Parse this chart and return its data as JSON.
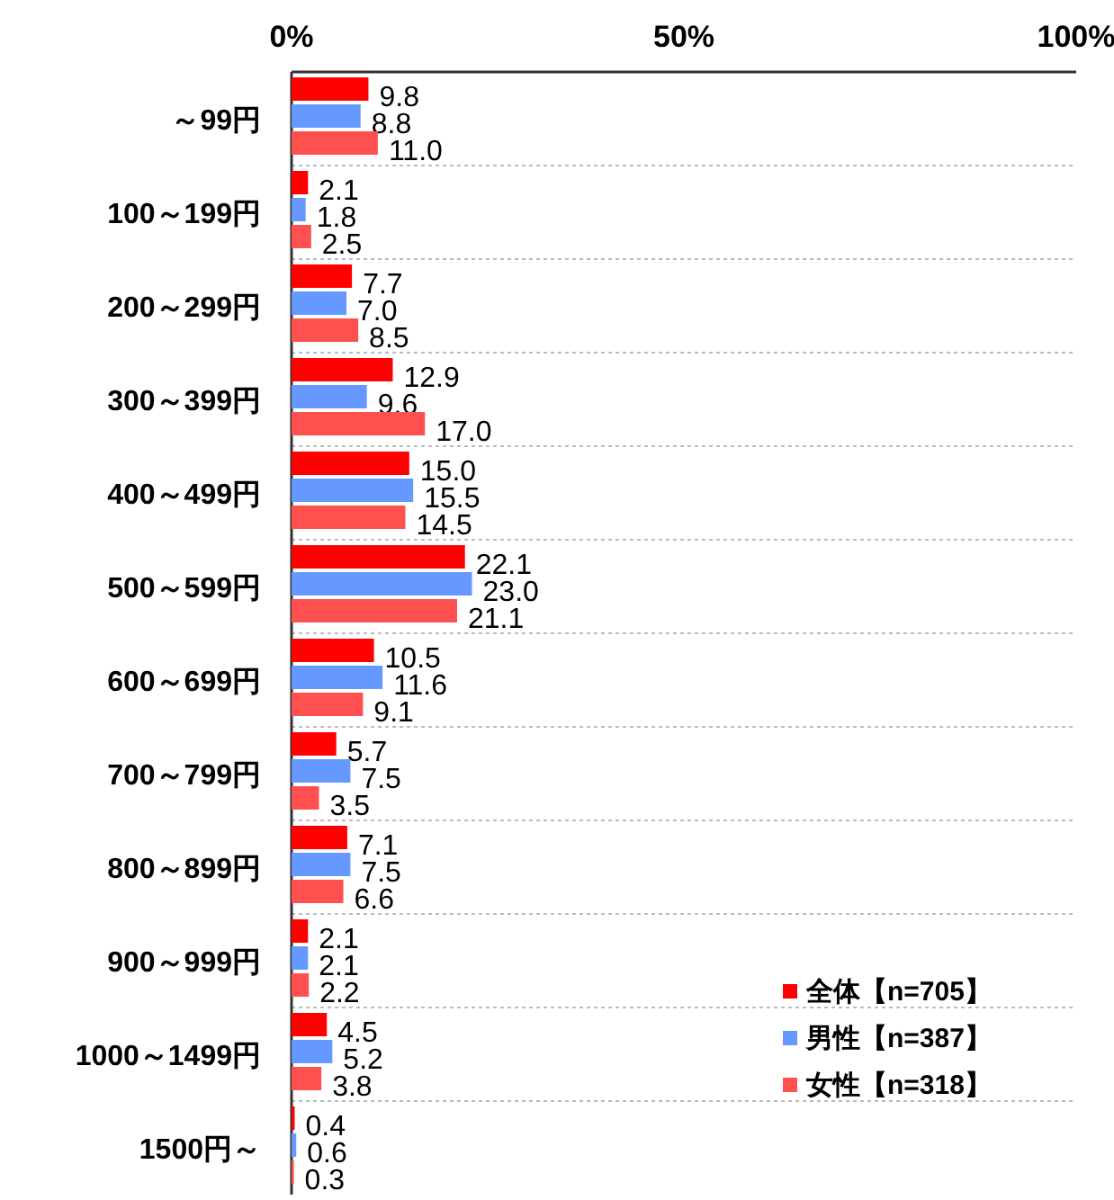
{
  "chart_data": {
    "type": "bar",
    "orientation": "horizontal",
    "categories": [
      "～99円",
      "100～199円",
      "200～299円",
      "300～399円",
      "400～499円",
      "500～599円",
      "600～699円",
      "700～799円",
      "800～899円",
      "900～999円",
      "1000～1499円",
      "1500円～"
    ],
    "series": [
      {
        "name": "全体【n=705】",
        "color": "#ff0000",
        "values": [
          9.8,
          2.1,
          7.7,
          12.9,
          15.0,
          22.1,
          10.5,
          5.7,
          7.1,
          2.1,
          4.5,
          0.4
        ],
        "value_labels": [
          "9.8",
          "2.1",
          "7.7",
          "12.9",
          "15.0",
          "22.1",
          "10.5",
          "5.7",
          "7.1",
          "2.1",
          "4.5",
          "0.4"
        ]
      },
      {
        "name": "男性【n=387】",
        "color": "#6699ff",
        "values": [
          8.8,
          1.8,
          7.0,
          9.6,
          15.5,
          23.0,
          11.6,
          7.5,
          7.5,
          2.1,
          5.2,
          0.6
        ],
        "value_labels": [
          "8.8",
          "1.8",
          "7.0",
          "9.6",
          "15.5",
          "23.0",
          "11.6",
          "7.5",
          "7.5",
          "2.1",
          "5.2",
          "0.6"
        ]
      },
      {
        "name": "女性【n=318】",
        "color": "#ff5050",
        "values": [
          11.0,
          2.5,
          8.5,
          17.0,
          14.5,
          21.1,
          9.1,
          3.5,
          6.6,
          2.2,
          3.8,
          0.3
        ],
        "value_labels": [
          "11.0",
          "2.5",
          "8.5",
          "17.0",
          "14.5",
          "21.1",
          "9.1",
          "3.5",
          "6.6",
          "2.2",
          "3.8",
          "0.3"
        ]
      }
    ],
    "xlim": [
      0,
      100
    ],
    "xticks": [
      {
        "value": 0,
        "label": "0%"
      },
      {
        "value": 50,
        "label": "50%"
      },
      {
        "value": 100,
        "label": "100%"
      }
    ],
    "grid": "y",
    "legend": "bottom right"
  }
}
